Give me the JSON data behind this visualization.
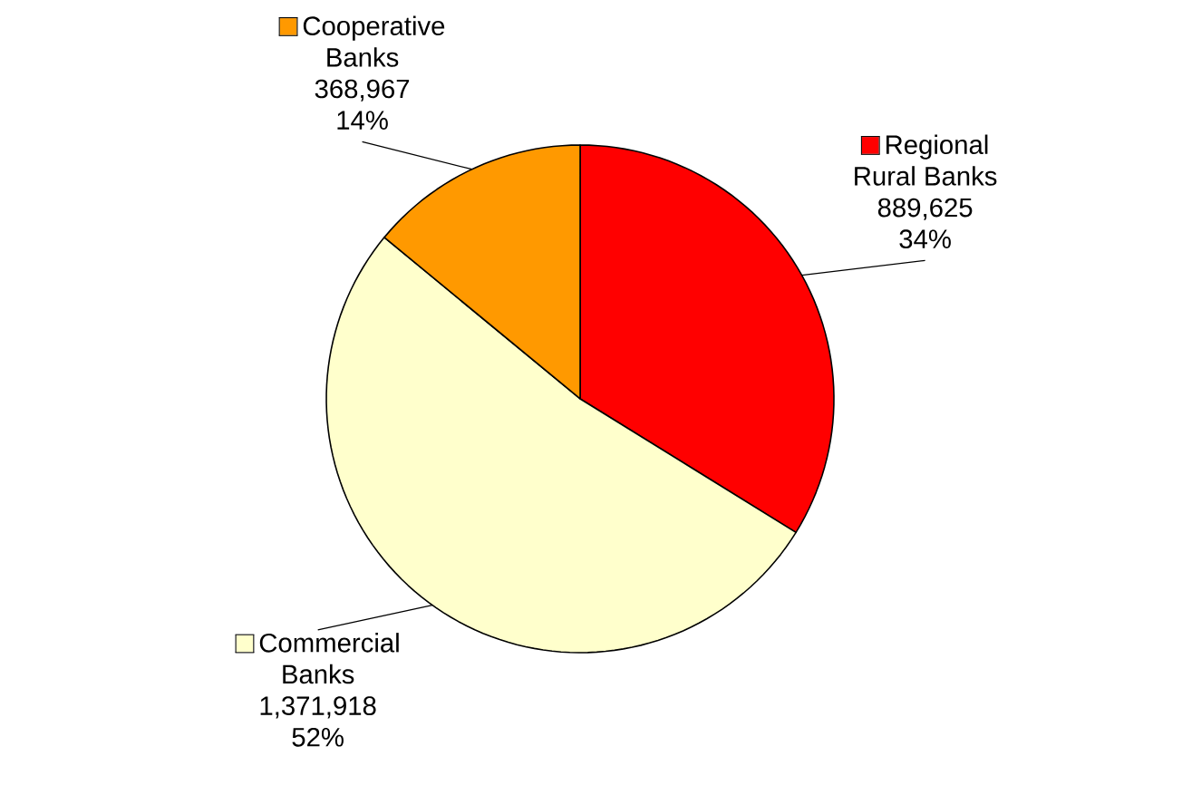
{
  "chart_data": {
    "type": "pie",
    "categories": [
      "Regional Rural Banks",
      "Commercial Banks",
      "Cooperative Banks"
    ],
    "values": [
      889625,
      1371918,
      368967
    ],
    "colors": [
      "#ff0000",
      "#ffffcc",
      "#ff9900"
    ],
    "legend": "top",
    "value_labels": [
      "889,625 34%",
      "1,371,918 52%",
      "368,967 14%"
    ]
  }
}
